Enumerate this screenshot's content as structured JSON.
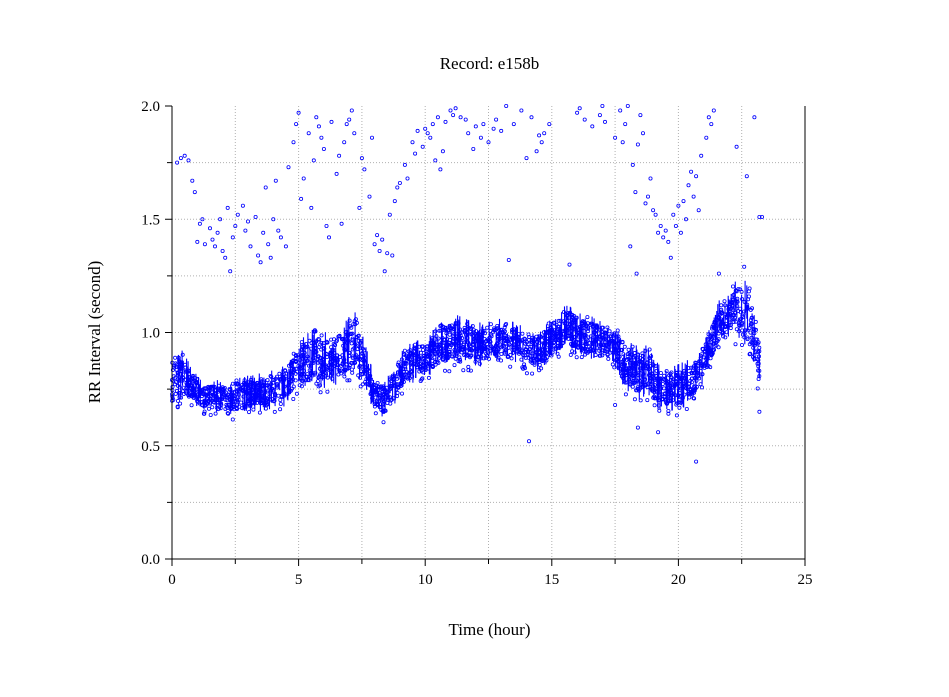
{
  "chart_data": {
    "type": "scatter",
    "title": "Record:  e158b",
    "xlabel": "Time (hour)",
    "ylabel": "RR Interval (second)",
    "xlim": [
      0,
      25
    ],
    "ylim": [
      0.0,
      2.0
    ],
    "x_ticks": [
      "0",
      "5",
      "10",
      "15",
      "20",
      "25"
    ],
    "y_ticks": [
      "0.0",
      "0.5",
      "1.0",
      "1.5",
      "2.0"
    ],
    "grid": true,
    "marker_color": "#0000ff",
    "band_profile": {
      "x": [
        0.0,
        0.4,
        0.8,
        1.2,
        1.6,
        2.0,
        2.4,
        2.8,
        3.2,
        3.6,
        4.0,
        4.4,
        4.8,
        5.2,
        5.6,
        6.0,
        6.4,
        6.8,
        7.2,
        7.6,
        8.0,
        8.4,
        8.8,
        9.2,
        9.6,
        10.0,
        10.4,
        10.8,
        11.2,
        11.6,
        12.0,
        12.4,
        12.8,
        13.2,
        13.6,
        14.0,
        14.4,
        14.8,
        15.2,
        15.6,
        16.0,
        16.4,
        16.8,
        17.2,
        17.6,
        18.0,
        18.4,
        18.8,
        19.2,
        19.6,
        20.0,
        20.4,
        20.8,
        21.2,
        21.6,
        22.0,
        22.4,
        22.8,
        23.2
      ],
      "low": [
        0.65,
        0.7,
        0.68,
        0.66,
        0.65,
        0.64,
        0.63,
        0.64,
        0.66,
        0.65,
        0.66,
        0.67,
        0.72,
        0.74,
        0.76,
        0.75,
        0.76,
        0.78,
        0.82,
        0.76,
        0.64,
        0.62,
        0.68,
        0.76,
        0.78,
        0.8,
        0.82,
        0.84,
        0.86,
        0.85,
        0.84,
        0.86,
        0.87,
        0.86,
        0.85,
        0.84,
        0.83,
        0.86,
        0.9,
        0.92,
        0.9,
        0.88,
        0.87,
        0.86,
        0.82,
        0.72,
        0.7,
        0.72,
        0.66,
        0.65,
        0.65,
        0.68,
        0.72,
        0.84,
        0.92,
        0.98,
        0.96,
        0.9,
        0.74
      ],
      "high": [
        0.94,
        0.92,
        0.84,
        0.78,
        0.78,
        0.8,
        0.8,
        0.8,
        0.82,
        0.82,
        0.84,
        0.85,
        0.92,
        0.98,
        1.02,
        1.0,
        1.01,
        1.04,
        1.1,
        0.96,
        0.8,
        0.78,
        0.86,
        0.94,
        0.96,
        0.98,
        1.02,
        1.06,
        1.08,
        1.06,
        1.04,
        1.05,
        1.06,
        1.06,
        1.04,
        1.02,
        1.0,
        1.04,
        1.1,
        1.12,
        1.1,
        1.08,
        1.06,
        1.04,
        1.02,
        0.96,
        0.94,
        0.96,
        0.86,
        0.84,
        0.86,
        0.88,
        0.9,
        1.02,
        1.14,
        1.2,
        1.24,
        1.22,
        0.98
      ]
    },
    "outliers": [
      {
        "x": 0.2,
        "y": 1.75
      },
      {
        "x": 0.35,
        "y": 1.77
      },
      {
        "x": 0.5,
        "y": 1.78
      },
      {
        "x": 0.65,
        "y": 1.76
      },
      {
        "x": 0.8,
        "y": 1.67
      },
      {
        "x": 0.9,
        "y": 1.62
      },
      {
        "x": 1.0,
        "y": 1.4
      },
      {
        "x": 1.1,
        "y": 1.48
      },
      {
        "x": 1.2,
        "y": 1.5
      },
      {
        "x": 1.3,
        "y": 1.39
      },
      {
        "x": 1.5,
        "y": 1.46
      },
      {
        "x": 1.6,
        "y": 1.41
      },
      {
        "x": 1.7,
        "y": 1.38
      },
      {
        "x": 1.8,
        "y": 1.44
      },
      {
        "x": 1.9,
        "y": 1.5
      },
      {
        "x": 2.0,
        "y": 1.36
      },
      {
        "x": 2.1,
        "y": 1.33
      },
      {
        "x": 2.2,
        "y": 1.55
      },
      {
        "x": 2.3,
        "y": 1.27
      },
      {
        "x": 2.4,
        "y": 1.42
      },
      {
        "x": 2.5,
        "y": 1.47
      },
      {
        "x": 2.6,
        "y": 1.52
      },
      {
        "x": 2.8,
        "y": 1.56
      },
      {
        "x": 2.9,
        "y": 1.45
      },
      {
        "x": 3.0,
        "y": 1.49
      },
      {
        "x": 3.1,
        "y": 1.38
      },
      {
        "x": 3.3,
        "y": 1.51
      },
      {
        "x": 3.4,
        "y": 1.34
      },
      {
        "x": 3.5,
        "y": 1.31
      },
      {
        "x": 3.6,
        "y": 1.44
      },
      {
        "x": 3.7,
        "y": 1.64
      },
      {
        "x": 3.8,
        "y": 1.39
      },
      {
        "x": 3.9,
        "y": 1.33
      },
      {
        "x": 4.0,
        "y": 1.5
      },
      {
        "x": 4.1,
        "y": 1.67
      },
      {
        "x": 4.2,
        "y": 1.45
      },
      {
        "x": 4.3,
        "y": 1.42
      },
      {
        "x": 4.5,
        "y": 1.38
      },
      {
        "x": 4.6,
        "y": 1.73
      },
      {
        "x": 4.8,
        "y": 1.84
      },
      {
        "x": 4.9,
        "y": 1.92
      },
      {
        "x": 5.0,
        "y": 1.97
      },
      {
        "x": 5.1,
        "y": 1.59
      },
      {
        "x": 5.2,
        "y": 1.68
      },
      {
        "x": 5.4,
        "y": 1.88
      },
      {
        "x": 5.5,
        "y": 1.55
      },
      {
        "x": 5.6,
        "y": 1.76
      },
      {
        "x": 5.7,
        "y": 1.95
      },
      {
        "x": 5.8,
        "y": 1.91
      },
      {
        "x": 5.9,
        "y": 1.86
      },
      {
        "x": 6.0,
        "y": 1.81
      },
      {
        "x": 6.1,
        "y": 1.47
      },
      {
        "x": 6.2,
        "y": 1.42
      },
      {
        "x": 6.3,
        "y": 1.93
      },
      {
        "x": 6.5,
        "y": 1.7
      },
      {
        "x": 6.6,
        "y": 1.78
      },
      {
        "x": 6.7,
        "y": 1.48
      },
      {
        "x": 6.8,
        "y": 1.84
      },
      {
        "x": 6.9,
        "y": 1.92
      },
      {
        "x": 7.0,
        "y": 1.94
      },
      {
        "x": 7.1,
        "y": 1.98
      },
      {
        "x": 7.2,
        "y": 1.88
      },
      {
        "x": 7.4,
        "y": 1.55
      },
      {
        "x": 7.5,
        "y": 1.77
      },
      {
        "x": 7.6,
        "y": 1.72
      },
      {
        "x": 7.8,
        "y": 1.6
      },
      {
        "x": 7.9,
        "y": 1.86
      },
      {
        "x": 8.0,
        "y": 1.39
      },
      {
        "x": 8.1,
        "y": 1.43
      },
      {
        "x": 8.2,
        "y": 1.36
      },
      {
        "x": 8.3,
        "y": 1.41
      },
      {
        "x": 8.4,
        "y": 1.27
      },
      {
        "x": 8.5,
        "y": 1.35
      },
      {
        "x": 8.6,
        "y": 1.52
      },
      {
        "x": 8.7,
        "y": 1.34
      },
      {
        "x": 8.8,
        "y": 1.58
      },
      {
        "x": 8.9,
        "y": 1.64
      },
      {
        "x": 9.0,
        "y": 1.66
      },
      {
        "x": 9.2,
        "y": 1.74
      },
      {
        "x": 9.3,
        "y": 1.68
      },
      {
        "x": 9.5,
        "y": 1.84
      },
      {
        "x": 9.6,
        "y": 1.79
      },
      {
        "x": 9.7,
        "y": 1.89
      },
      {
        "x": 9.9,
        "y": 1.82
      },
      {
        "x": 10.0,
        "y": 1.9
      },
      {
        "x": 10.1,
        "y": 1.88
      },
      {
        "x": 10.2,
        "y": 1.86
      },
      {
        "x": 10.3,
        "y": 1.92
      },
      {
        "x": 10.4,
        "y": 1.76
      },
      {
        "x": 10.5,
        "y": 1.95
      },
      {
        "x": 10.6,
        "y": 1.72
      },
      {
        "x": 10.7,
        "y": 1.8
      },
      {
        "x": 10.8,
        "y": 1.93
      },
      {
        "x": 11.0,
        "y": 1.98
      },
      {
        "x": 11.1,
        "y": 1.96
      },
      {
        "x": 11.2,
        "y": 1.99
      },
      {
        "x": 11.4,
        "y": 1.95
      },
      {
        "x": 11.6,
        "y": 1.94
      },
      {
        "x": 11.7,
        "y": 1.88
      },
      {
        "x": 11.9,
        "y": 1.81
      },
      {
        "x": 12.0,
        "y": 1.91
      },
      {
        "x": 12.2,
        "y": 1.86
      },
      {
        "x": 12.3,
        "y": 1.92
      },
      {
        "x": 12.5,
        "y": 1.84
      },
      {
        "x": 12.7,
        "y": 1.9
      },
      {
        "x": 12.8,
        "y": 1.94
      },
      {
        "x": 13.0,
        "y": 1.89
      },
      {
        "x": 13.2,
        "y": 2.0
      },
      {
        "x": 13.3,
        "y": 1.32
      },
      {
        "x": 13.5,
        "y": 1.92
      },
      {
        "x": 13.8,
        "y": 1.98
      },
      {
        "x": 14.0,
        "y": 1.77
      },
      {
        "x": 14.2,
        "y": 1.95
      },
      {
        "x": 14.4,
        "y": 1.8
      },
      {
        "x": 14.5,
        "y": 1.87
      },
      {
        "x": 14.6,
        "y": 1.84
      },
      {
        "x": 14.7,
        "y": 1.88
      },
      {
        "x": 14.9,
        "y": 1.92
      },
      {
        "x": 15.7,
        "y": 1.3
      },
      {
        "x": 16.0,
        "y": 1.97
      },
      {
        "x": 16.1,
        "y": 1.99
      },
      {
        "x": 16.3,
        "y": 1.94
      },
      {
        "x": 16.6,
        "y": 1.91
      },
      {
        "x": 16.9,
        "y": 1.96
      },
      {
        "x": 17.0,
        "y": 2.0
      },
      {
        "x": 17.1,
        "y": 1.93
      },
      {
        "x": 17.5,
        "y": 1.86
      },
      {
        "x": 17.7,
        "y": 1.98
      },
      {
        "x": 17.8,
        "y": 1.84
      },
      {
        "x": 17.9,
        "y": 1.92
      },
      {
        "x": 18.0,
        "y": 2.0
      },
      {
        "x": 18.1,
        "y": 1.38
      },
      {
        "x": 18.2,
        "y": 1.74
      },
      {
        "x": 18.3,
        "y": 1.62
      },
      {
        "x": 18.35,
        "y": 1.26
      },
      {
        "x": 18.4,
        "y": 1.83
      },
      {
        "x": 18.5,
        "y": 1.96
      },
      {
        "x": 18.6,
        "y": 1.88
      },
      {
        "x": 18.7,
        "y": 1.57
      },
      {
        "x": 18.8,
        "y": 1.6
      },
      {
        "x": 18.9,
        "y": 1.68
      },
      {
        "x": 19.0,
        "y": 1.54
      },
      {
        "x": 19.1,
        "y": 1.52
      },
      {
        "x": 19.2,
        "y": 1.44
      },
      {
        "x": 19.3,
        "y": 1.47
      },
      {
        "x": 19.4,
        "y": 1.42
      },
      {
        "x": 19.5,
        "y": 1.45
      },
      {
        "x": 19.6,
        "y": 1.4
      },
      {
        "x": 19.7,
        "y": 1.33
      },
      {
        "x": 19.8,
        "y": 1.52
      },
      {
        "x": 19.9,
        "y": 1.47
      },
      {
        "x": 20.0,
        "y": 1.56
      },
      {
        "x": 20.1,
        "y": 1.44
      },
      {
        "x": 20.2,
        "y": 1.58
      },
      {
        "x": 20.3,
        "y": 1.5
      },
      {
        "x": 20.4,
        "y": 1.65
      },
      {
        "x": 20.5,
        "y": 1.71
      },
      {
        "x": 20.6,
        "y": 1.6
      },
      {
        "x": 20.7,
        "y": 1.69
      },
      {
        "x": 20.8,
        "y": 1.54
      },
      {
        "x": 20.9,
        "y": 1.78
      },
      {
        "x": 21.1,
        "y": 1.86
      },
      {
        "x": 21.2,
        "y": 1.95
      },
      {
        "x": 21.3,
        "y": 1.92
      },
      {
        "x": 21.4,
        "y": 1.98
      },
      {
        "x": 22.3,
        "y": 1.82
      },
      {
        "x": 22.7,
        "y": 1.69
      },
      {
        "x": 23.0,
        "y": 1.95
      },
      {
        "x": 23.2,
        "y": 1.51
      },
      {
        "x": 23.3,
        "y": 1.51
      },
      {
        "x": 14.1,
        "y": 0.52
      },
      {
        "x": 18.4,
        "y": 0.58
      },
      {
        "x": 19.2,
        "y": 0.56
      },
      {
        "x": 20.7,
        "y": 0.43
      },
      {
        "x": 22.6,
        "y": 1.29
      },
      {
        "x": 21.6,
        "y": 1.26
      },
      {
        "x": 23.2,
        "y": 0.65
      },
      {
        "x": 17.5,
        "y": 0.68
      }
    ]
  }
}
